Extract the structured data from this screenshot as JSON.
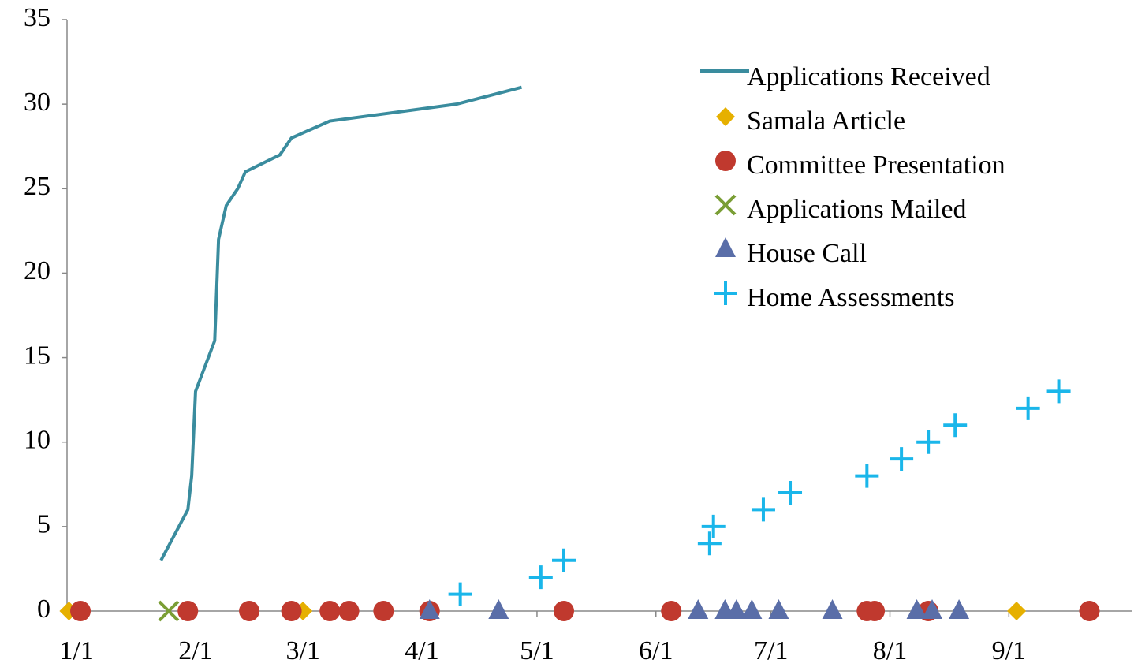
{
  "chart_data": {
    "type": "scatter",
    "xlim": [
      -2.5,
      275
    ],
    "xticks": [
      {
        "value": 0,
        "label": "1/1"
      },
      {
        "value": 31,
        "label": "2/1"
      },
      {
        "value": 59,
        "label": "3/1"
      },
      {
        "value": 90,
        "label": "4/1"
      },
      {
        "value": 120,
        "label": "5/1"
      },
      {
        "value": 151,
        "label": "6/1"
      },
      {
        "value": 181,
        "label": "7/1"
      },
      {
        "value": 212,
        "label": "8/1"
      },
      {
        "value": 243,
        "label": "9/1"
      }
    ],
    "ylim": [
      0,
      35
    ],
    "yticks": [
      0,
      5,
      10,
      15,
      20,
      25,
      30,
      35
    ],
    "legend": "upper right",
    "series": [
      {
        "name": "Applications Received",
        "marker": "line",
        "color": "#3a8c9e",
        "x": [
          22,
          29,
          30,
          31,
          36,
          37,
          39,
          42,
          44,
          53,
          56,
          66,
          99,
          116
        ],
        "values": [
          3,
          6,
          8,
          13,
          16,
          22,
          24,
          25,
          26,
          27,
          28,
          29,
          30,
          31
        ]
      },
      {
        "name": "Samala Article",
        "marker": "diamond",
        "color": "#e6b000",
        "x": [
          -2,
          59,
          245
        ],
        "values": [
          0,
          0,
          0
        ]
      },
      {
        "name": "Committee Presentation",
        "marker": "circle",
        "color": "#c0392e",
        "x": [
          1,
          29,
          45,
          56,
          66,
          71,
          80,
          92,
          127,
          155,
          206,
          208,
          222,
          264
        ],
        "values": [
          0,
          0,
          0,
          0,
          0,
          0,
          0,
          0,
          0,
          0,
          0,
          0,
          0,
          0
        ]
      },
      {
        "name": "Applications Mailed",
        "marker": "x",
        "color": "#7a9e35",
        "x": [
          24
        ],
        "values": [
          0
        ]
      },
      {
        "name": "House Call",
        "marker": "triangle",
        "color": "#5a6ea8",
        "x": [
          92,
          110,
          162,
          169,
          172,
          176,
          183,
          197,
          219,
          223,
          230
        ],
        "values": [
          0,
          0,
          0,
          0,
          0,
          0,
          0,
          0,
          0,
          0,
          0
        ]
      },
      {
        "name": "Home Assessments",
        "marker": "plus",
        "color": "#1ab6ea",
        "x": [
          100,
          121,
          127,
          165,
          166,
          179,
          186,
          206,
          215,
          222,
          229,
          248,
          256
        ],
        "values": [
          1,
          2,
          3,
          4,
          5,
          6,
          7,
          8,
          9,
          10,
          11,
          12,
          13
        ]
      }
    ]
  }
}
